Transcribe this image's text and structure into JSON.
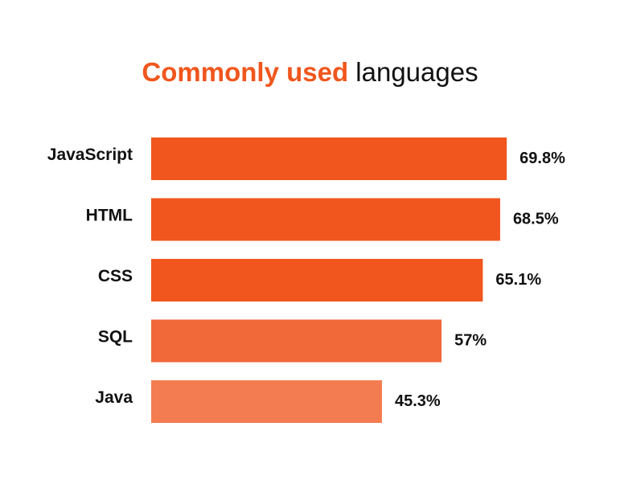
{
  "title": {
    "accent": "Commonly used",
    "rest": "languages"
  },
  "chart_data": {
    "type": "bar",
    "orientation": "horizontal",
    "categories": [
      "JavaScript",
      "HTML",
      "CSS",
      "SQL",
      "Java"
    ],
    "values": [
      69.8,
      68.5,
      65.1,
      57,
      45.3
    ],
    "value_labels": [
      "69.8%",
      "68.5%",
      "65.1%",
      "57%",
      "45.3%"
    ],
    "unit": "%",
    "xlim": [
      0,
      100
    ],
    "grid": false,
    "legend": "none",
    "colors": [
      "#F0561D",
      "#F0561D",
      "#F0561D",
      "#F26939",
      "#F47C51"
    ]
  }
}
